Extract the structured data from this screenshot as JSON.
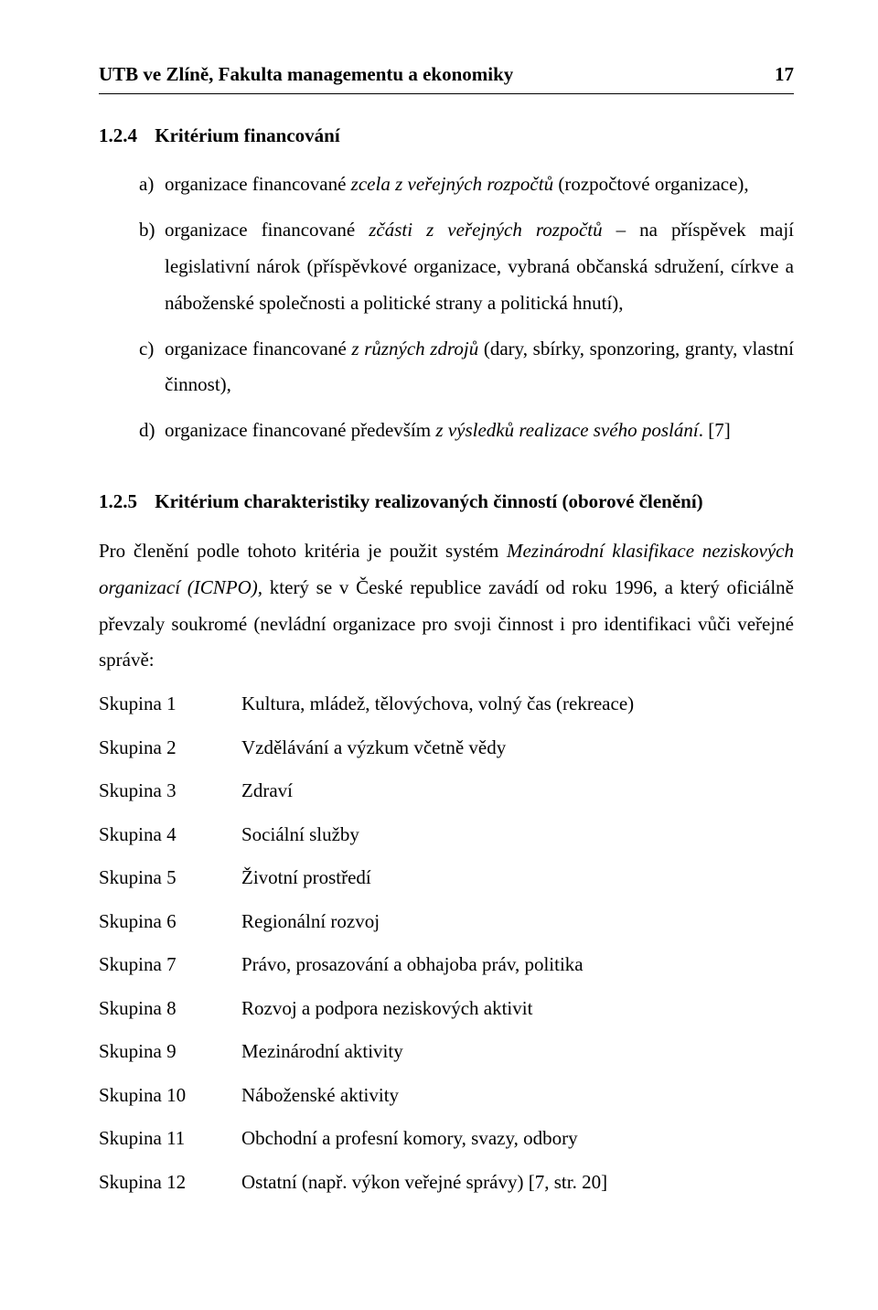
{
  "header": {
    "title": "UTB ve Zlíně, Fakulta managementu a ekonomiky",
    "page": "17"
  },
  "sections": {
    "s124": {
      "number": "1.2.4",
      "title": "Kritérium financování",
      "items": {
        "a": {
          "marker": "a)",
          "pre": "organizace financované ",
          "em": "zcela z veřejných rozpočtů",
          "post": " (rozpočtové organizace),"
        },
        "b": {
          "marker": "b)",
          "pre": "organizace financované ",
          "em": "zčásti z veřejných rozpočtů",
          "post": " – na příspěvek mají legislativní nárok (příspěvkové organizace, vybraná občanská sdružení, církve a náboženské společnosti a politické strany a politická hnutí),"
        },
        "c": {
          "marker": "c)",
          "pre": "organizace financované ",
          "em": "z různých zdrojů",
          "post": " (dary, sbírky, sponzoring, granty, vlastní činnost),"
        },
        "d": {
          "marker": "d)",
          "pre": "organizace financované především ",
          "em": "z výsledků realizace svého poslání",
          "post": ". [7]"
        }
      }
    },
    "s125": {
      "number": "1.2.5",
      "title": "Kritérium charakteristiky realizovaných činností (oborové členění)",
      "intro_pre": "Pro členění podle tohoto kritéria je použit systém ",
      "intro_em": "Mezinárodní klasifikace neziskových organizací (ICNPO),",
      "intro_post": " který se v České republice zavádí od roku 1996, a který oficiálně převzaly soukromé (nevládní organizace pro svoji činnost i pro identifikaci vůči veřejné správě:",
      "groups": [
        {
          "label": "Skupina 1",
          "value": "Kultura, mládež, tělovýchova, volný čas (rekreace)"
        },
        {
          "label": "Skupina 2",
          "value": "Vzdělávání a výzkum včetně vědy"
        },
        {
          "label": "Skupina 3",
          "value": "Zdraví"
        },
        {
          "label": "Skupina 4",
          "value": "Sociální služby"
        },
        {
          "label": "Skupina 5",
          "value": "Životní prostředí"
        },
        {
          "label": "Skupina 6",
          "value": "Regionální rozvoj"
        },
        {
          "label": "Skupina 7",
          "value": "Právo, prosazování a obhajoba práv, politika"
        },
        {
          "label": "Skupina 8",
          "value": "Rozvoj a podpora neziskových aktivit"
        },
        {
          "label": "Skupina 9",
          "value": "Mezinárodní aktivity"
        },
        {
          "label": "Skupina 10",
          "value": "Náboženské aktivity"
        },
        {
          "label": "Skupina 11",
          "value": "Obchodní a profesní komory, svazy, odbory"
        },
        {
          "label": "Skupina 12",
          "value": "Ostatní (např. výkon veřejné správy) [7, str. 20]"
        }
      ]
    }
  }
}
